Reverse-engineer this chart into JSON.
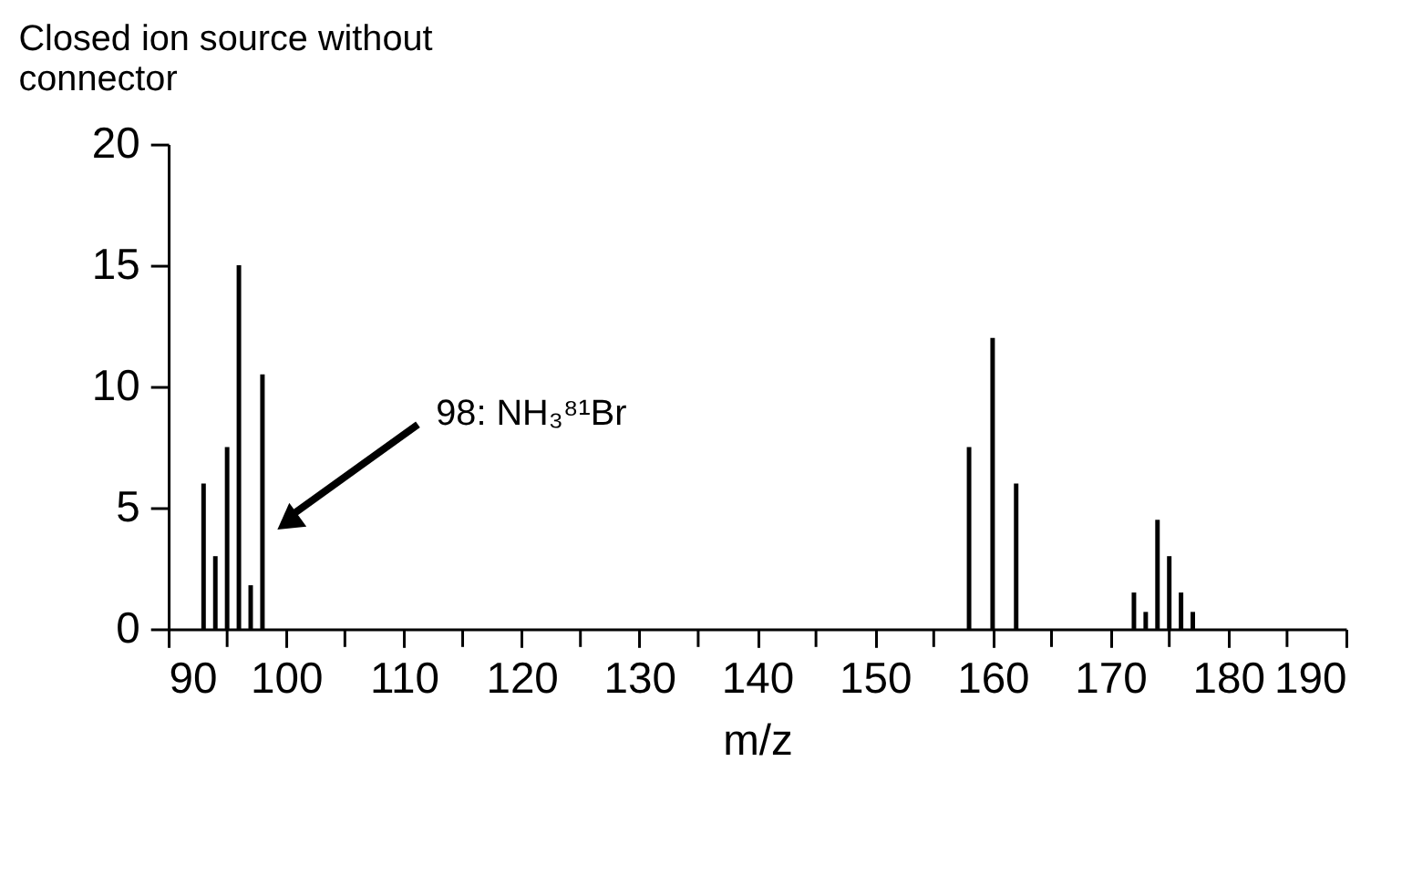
{
  "chart_data": {
    "type": "bar",
    "title": [
      "Closed ion source without",
      "connector"
    ],
    "xlabel": "m/z",
    "x": [
      93,
      94,
      95,
      96,
      97,
      98,
      158,
      160,
      162,
      172,
      173,
      174,
      175,
      176,
      177
    ],
    "values": [
      6,
      3,
      7.5,
      15,
      1.8,
      10.5,
      7.5,
      12,
      6,
      1.5,
      0.7,
      4.5,
      3,
      1.5,
      0.7
    ],
    "color": "#000000",
    "xlim": [
      90,
      190
    ],
    "xticks": [
      90,
      {
        "value": 95,
        "label": null
      },
      100,
      {
        "value": 105,
        "label": null
      },
      110,
      {
        "value": 115,
        "label": null
      },
      120,
      {
        "value": 125,
        "label": null
      },
      130,
      {
        "value": 135,
        "label": null
      },
      140,
      {
        "value": 145,
        "label": null
      },
      150,
      {
        "value": 155,
        "label": null
      },
      160,
      {
        "value": 165,
        "label": null
      },
      170,
      {
        "value": 175,
        "label": null
      },
      180,
      {
        "value": 185,
        "label": null
      },
      190
    ],
    "ylim": [
      0,
      20
    ],
    "yticks": [
      0,
      5,
      10,
      15,
      20
    ],
    "grid": false,
    "annotations": [
      "98: NH₃⁸¹Br"
    ]
  }
}
